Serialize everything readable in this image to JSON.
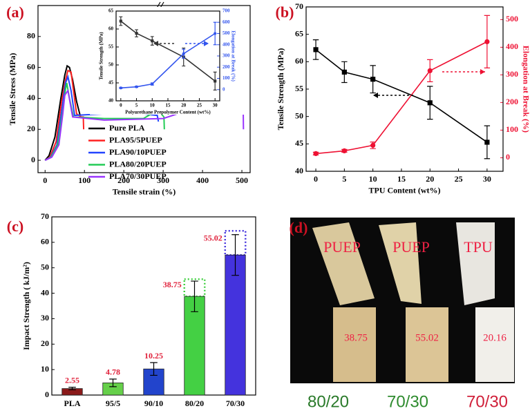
{
  "chart_data": [
    {
      "type": "line",
      "title": "(a)",
      "xlabel": "Tensile strain (%)",
      "ylabel": "Tensile Stress (MPa)",
      "xlim": [
        -18,
        521
      ],
      "xticks": [
        0,
        100,
        200,
        300,
        400,
        500
      ],
      "ylim": [
        -8,
        100
      ],
      "yticks": [
        0,
        20,
        40,
        60,
        80
      ],
      "legend": "lower left",
      "series": [
        {
          "name": "Pure PLA",
          "color": "#000000",
          "x": [
            0,
            10,
            25,
            40,
            50,
            56,
            62,
            70,
            80,
            90
          ],
          "values": [
            0,
            3,
            15,
            40,
            55,
            61,
            60,
            52,
            38,
            28
          ]
        },
        {
          "name": "PLA95/5PUEP",
          "color": "#ff2020",
          "x": [
            0,
            12,
            28,
            42,
            52,
            58,
            66,
            80,
            92,
            97,
            98
          ],
          "values": [
            0,
            2,
            12,
            38,
            52,
            58,
            57,
            30,
            28,
            28,
            20
          ]
        },
        {
          "name": "PLA90/10PUEP",
          "color": "#2244ff",
          "x": [
            0,
            14,
            30,
            44,
            52,
            58,
            66,
            75,
            150,
            250,
            285,
            288
          ],
          "values": [
            0,
            2,
            10,
            35,
            50,
            54,
            45,
            29,
            30,
            30,
            29,
            25
          ]
        },
        {
          "name": "PLA80/20PUEP",
          "color": "#22cc55",
          "x": [
            0,
            15,
            32,
            45,
            52,
            55,
            62,
            72,
            150,
            250,
            270,
            280,
            295,
            302,
            303
          ],
          "values": [
            0,
            2,
            10,
            32,
            46,
            50,
            40,
            28,
            27,
            27,
            30,
            33,
            30,
            28,
            20
          ]
        },
        {
          "name": "PLA70/30PUEP",
          "color": "#9933ff",
          "x": [
            0,
            17,
            35,
            45,
            50,
            58,
            70,
            150,
            300,
            360,
            400,
            430,
            460,
            490,
            500,
            503,
            504
          ],
          "values": [
            0,
            2,
            10,
            30,
            42,
            45,
            28,
            26,
            27,
            32,
            36,
            38,
            38,
            40,
            41,
            41,
            20
          ]
        }
      ]
    },
    {
      "type": "line",
      "xlabel": "Polyurethane Prepolymer Content (wt%)",
      "ylabel": "Tensile Strength (MPa)",
      "y2label": "Elongation at Break (%)",
      "x": [
        0,
        5,
        10,
        20,
        30
      ],
      "xlim": [
        -1.5,
        31.5
      ],
      "xticks": [
        0,
        5,
        10,
        15,
        20,
        25,
        30
      ],
      "ylim": [
        40,
        65
      ],
      "yticks": [
        40,
        45,
        50,
        55,
        60,
        65
      ],
      "y2lim": [
        -100,
        700
      ],
      "y2ticks": [
        0,
        100,
        200,
        300,
        400,
        500,
        600,
        700
      ],
      "series": [
        {
          "color": "#333333",
          "values": [
            62.2,
            58.8,
            56.7,
            52.2,
            45.5
          ],
          "errors": [
            1.2,
            1,
            1.2,
            2.5,
            2.5
          ]
        },
        {
          "color": "#3355ee",
          "axis": "y2",
          "values": [
            15,
            25,
            50,
            320,
            500
          ],
          "errors": [
            5,
            5,
            10,
            40,
            100
          ]
        }
      ]
    },
    {
      "type": "line",
      "title": "(b)",
      "xlabel": "TPU Content (wt%)",
      "ylabel": "Tensile Strength (MPa)",
      "y2label": "Elongation at Break (%)",
      "x": [
        0,
        5,
        10,
        20,
        30
      ],
      "xlim": [
        -1.7,
        32.8
      ],
      "xticks": [
        0,
        5,
        10,
        15,
        20,
        25,
        30
      ],
      "ylim": [
        40,
        70
      ],
      "yticks": [
        40,
        45,
        50,
        55,
        60,
        65,
        70
      ],
      "y2lim": [
        -49,
        546
      ],
      "y2ticks": [
        0,
        100,
        200,
        300,
        400,
        500
      ],
      "series": [
        {
          "color": "#000000",
          "values": [
            62.2,
            58.1,
            56.8,
            52.5,
            45.3
          ],
          "errors": [
            1.8,
            1.9,
            2.5,
            3,
            3
          ]
        },
        {
          "color": "#ee1133",
          "axis": "y2",
          "values": [
            15,
            25,
            45,
            315,
            420
          ],
          "errors": [
            5,
            5,
            12,
            40,
            95
          ]
        }
      ]
    },
    {
      "type": "bar",
      "title": "(c)",
      "ylabel": "Impact Strength ( kJ/m²)",
      "categories": [
        "PLA",
        "95/5",
        "90/10",
        "80/20",
        "70/30"
      ],
      "values": [
        2.55,
        4.78,
        10.25,
        38.75,
        55.02
      ],
      "errors": [
        0.5,
        1.5,
        2.5,
        6,
        8
      ],
      "reference_values": [
        null,
        null,
        null,
        45.5,
        64.5
      ],
      "colors": [
        "#8b1a1a",
        "#66d04a",
        "#2244cc",
        "#44d044",
        "#4433dd"
      ],
      "ylim": [
        0,
        70
      ],
      "yticks": [
        0,
        10,
        20,
        30,
        40,
        50,
        60,
        70
      ]
    }
  ],
  "photo": {
    "title": "(d)",
    "labels": [
      "PUEP",
      "PUEP",
      "TPU"
    ],
    "numbers": [
      38.75,
      55.02,
      20.16
    ],
    "captions": [
      "80/20",
      "70/30",
      "70/30"
    ]
  }
}
